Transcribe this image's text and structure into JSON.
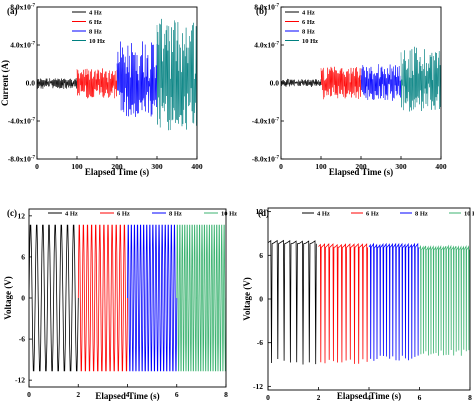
{
  "chart_data": [
    {
      "panel": "(a)",
      "type": "line",
      "xlabel": "Elapsed Time (s)",
      "ylabel": "Current (A)",
      "xlim": [
        0,
        400
      ],
      "ylim": [
        -8e-07,
        8e-07
      ],
      "xticks": [
        "0",
        "100",
        "200",
        "300",
        "400"
      ],
      "yticks": [
        "8.0x10-7",
        "4.0x10-7",
        "0.0",
        "-4.0x10-7",
        "-8.0x10-7"
      ],
      "legend": "top-left",
      "series": [
        {
          "name": "4 Hz",
          "color": "#000000",
          "x_range": [
            0,
            100
          ],
          "center": 0.0,
          "amplitude_pos": 5e-08,
          "amplitude_neg": 6e-08
        },
        {
          "name": "6 Hz",
          "color": "#ff0000",
          "x_range": [
            100,
            200
          ],
          "center": 0.0,
          "amplitude_pos": 1.5e-07,
          "amplitude_neg": 1.6e-07
        },
        {
          "name": "8 Hz",
          "color": "#0000ff",
          "x_range": [
            200,
            300
          ],
          "center": 0.0,
          "amplitude_pos": 4.6e-07,
          "amplitude_neg": 3.6e-07
        },
        {
          "name": "10 Hz",
          "color": "#008080",
          "x_range": [
            300,
            400
          ],
          "center": 0.0,
          "amplitude_pos": 6.8e-07,
          "amplitude_neg": 5e-07
        }
      ]
    },
    {
      "panel": "(b)",
      "type": "line",
      "xlabel": "Elapsed Time (s)",
      "ylabel": "",
      "xlim": [
        0,
        400
      ],
      "ylim": [
        -8e-07,
        8e-07
      ],
      "xticks": [
        "0",
        "100",
        "200",
        "300",
        "400"
      ],
      "yticks": [
        "8.0x10-7",
        "4.0x10-7",
        "0.0",
        "-4.0x10-7",
        "-8.0x10-7"
      ],
      "legend": "top-left",
      "series": [
        {
          "name": "4 Hz",
          "color": "#000000",
          "x_range": [
            0,
            100
          ],
          "center": 0.0,
          "amplitude_pos": 4e-08,
          "amplitude_neg": 4e-08
        },
        {
          "name": "6 Hz",
          "color": "#ff0000",
          "x_range": [
            100,
            200
          ],
          "center": 0.0,
          "amplitude_pos": 1.7e-07,
          "amplitude_neg": 1.7e-07
        },
        {
          "name": "8 Hz",
          "color": "#0000ff",
          "x_range": [
            200,
            300
          ],
          "center": 0.0,
          "amplitude_pos": 2e-07,
          "amplitude_neg": 1.9e-07
        },
        {
          "name": "10 Hz",
          "color": "#008080",
          "x_range": [
            300,
            400
          ],
          "center": 0.0,
          "amplitude_pos": 3.8e-07,
          "amplitude_neg": 3e-07
        }
      ]
    },
    {
      "panel": "(c)",
      "type": "line",
      "xlabel": "Elapsed Time (s)",
      "ylabel": "Voltage (V)",
      "xlim": [
        0,
        8
      ],
      "ylim": [
        -13,
        13
      ],
      "xticks": [
        "0",
        "2",
        "4",
        "6",
        "8"
      ],
      "yticks": [
        "12",
        "6",
        "0",
        "-6",
        "-12"
      ],
      "legend": "top",
      "series": [
        {
          "name": "4 Hz",
          "color": "#000000",
          "x_range": [
            0,
            2
          ],
          "cycles": 8,
          "max": 11.2,
          "min": -11.2
        },
        {
          "name": "6 Hz",
          "color": "#ff0000",
          "x_range": [
            2,
            4
          ],
          "cycles": 12,
          "max": 11.2,
          "min": -11.2
        },
        {
          "name": "8 Hz",
          "color": "#0000ff",
          "x_range": [
            4,
            6
          ],
          "cycles": 16,
          "max": 11.2,
          "min": -11.2
        },
        {
          "name": "10 Hz",
          "color": "#3cb371",
          "x_range": [
            6,
            8
          ],
          "cycles": 20,
          "max": 11.2,
          "min": -11.2
        }
      ]
    },
    {
      "panel": "(d)",
      "type": "line",
      "xlabel": "Elapsed Time (s)",
      "ylabel": "Voltage (V)",
      "xlim": [
        0,
        8
      ],
      "ylim": [
        -12.5,
        12.5
      ],
      "xticks": [
        "0",
        "2",
        "4",
        "6",
        "8"
      ],
      "yticks": [
        "12",
        "6",
        "0",
        "-6",
        "-12"
      ],
      "legend": "top",
      "series": [
        {
          "name": "4 Hz",
          "color": "#000000",
          "x_range": [
            0,
            2
          ],
          "cycles": 8,
          "max": 8.0,
          "min": -9.0
        },
        {
          "name": "6 Hz",
          "color": "#ff0000",
          "x_range": [
            2,
            4
          ],
          "cycles": 12,
          "max": 7.5,
          "min": -9.0
        },
        {
          "name": "8 Hz",
          "color": "#0000ff",
          "x_range": [
            4,
            6
          ],
          "cycles": 16,
          "max": 7.5,
          "min": -8.5
        },
        {
          "name": "10 Hz",
          "color": "#3cb371",
          "x_range": [
            6,
            8
          ],
          "cycles": 20,
          "max": 7.2,
          "min": -7.8
        }
      ]
    }
  ]
}
